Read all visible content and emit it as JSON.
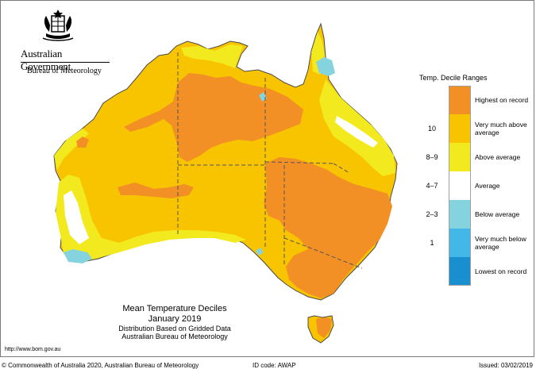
{
  "header": {
    "government": "Australian Government",
    "agency": "Bureau of Meteorology"
  },
  "legend": {
    "title": "Temp. Decile Ranges",
    "items": [
      {
        "code": "",
        "label": "Highest on record",
        "color": "#f28f25"
      },
      {
        "code": "10",
        "label": "Very much above average",
        "color": "#f8c400"
      },
      {
        "code": "8–9",
        "label": "Above average",
        "color": "#f2ea1e"
      },
      {
        "code": "4–7",
        "label": "Average",
        "color": "#ffffff"
      },
      {
        "code": "2–3",
        "label": "Below average",
        "color": "#86d3e0"
      },
      {
        "code": "1",
        "label": "Very much below average",
        "color": "#43b8e8"
      },
      {
        "code": "",
        "label": "Lowest on record",
        "color": "#1a8fcf"
      }
    ]
  },
  "caption": {
    "title": "Mean Temperature Deciles",
    "period": "January 2019",
    "line1": "Distribution Based on Gridded Data",
    "line2": "Australian Bureau of Meteorology"
  },
  "url": "http://www.bom.gov.au",
  "footer": {
    "copyright": "© Commonwealth of Australia 2020, Australian Bureau of Meteorology",
    "id_code": "ID code: AWAP",
    "issued": "Issued: 03/02/2019"
  }
}
